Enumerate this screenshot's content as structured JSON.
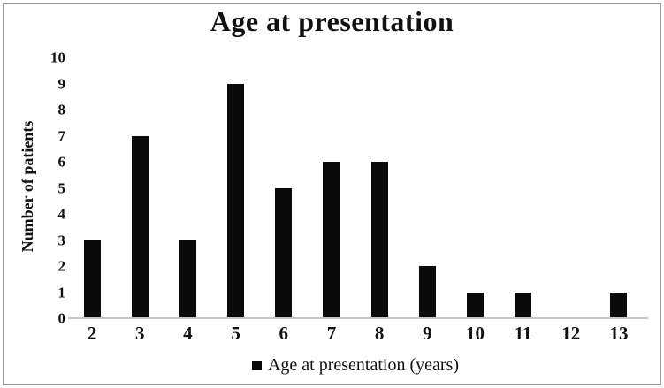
{
  "colors": {
    "bar": "#0a0a0a",
    "axis_line": "#c6c6c6",
    "frame_border": "#9a9a9a",
    "text": "#111111"
  },
  "chart_data": {
    "type": "bar",
    "title": "Age at presentation",
    "categories": [
      "2",
      "3",
      "4",
      "5",
      "6",
      "7",
      "8",
      "9",
      "10",
      "11",
      "12",
      "13"
    ],
    "values": [
      3,
      7,
      3,
      9,
      5,
      6,
      6,
      2,
      1,
      1,
      0,
      1
    ],
    "xlabel": "",
    "ylabel": "Number of patients",
    "ylim": [
      0,
      10
    ],
    "ytick_step": 1,
    "grid": false,
    "bar_color": "#0a0a0a",
    "legend": {
      "position": "bottom",
      "entries": [
        "Age at presentation (years)"
      ]
    }
  }
}
